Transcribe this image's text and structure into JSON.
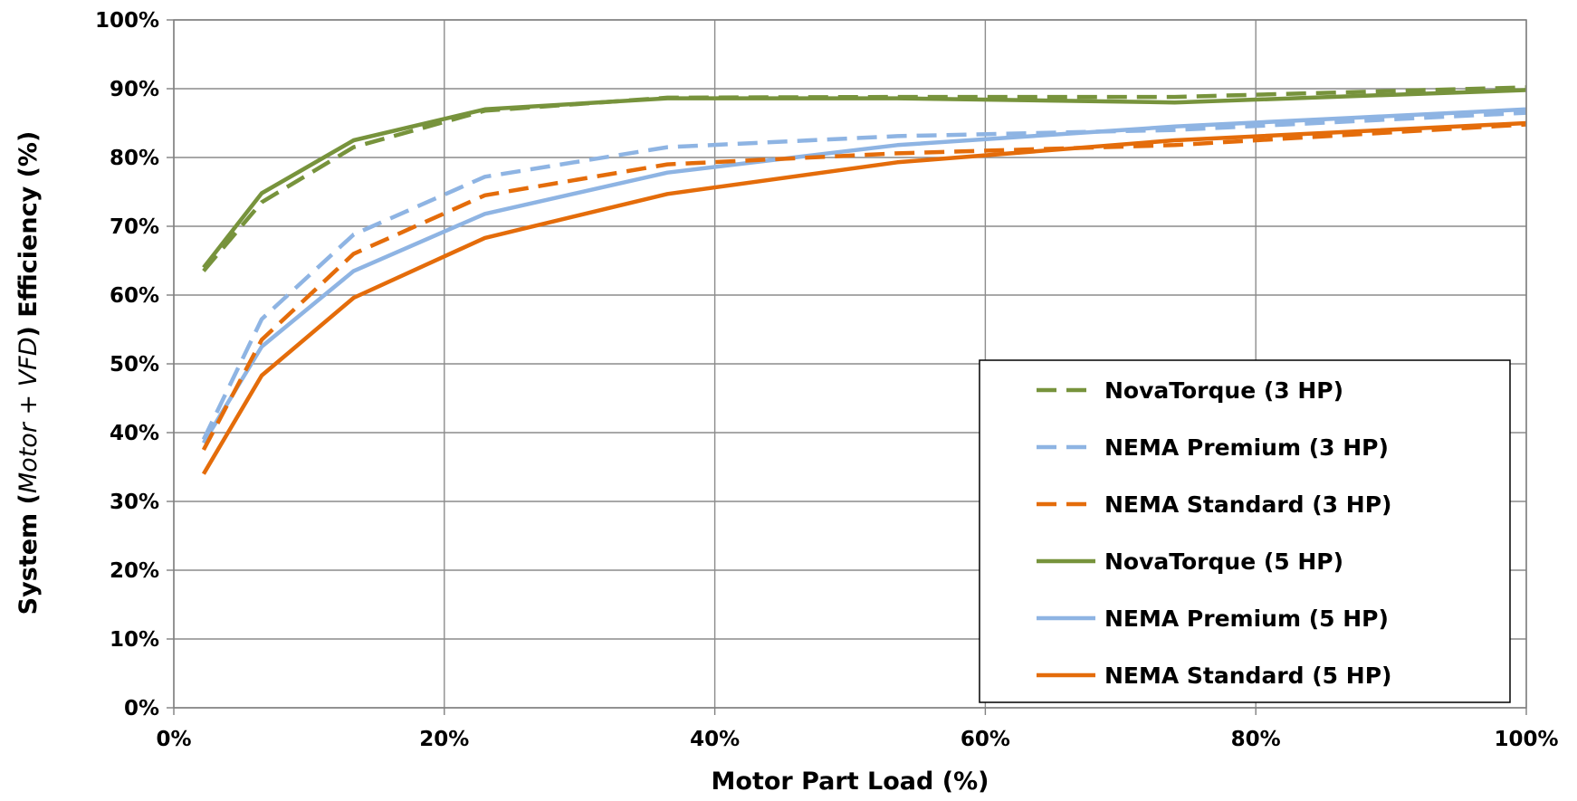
{
  "chart_data": {
    "type": "line",
    "xlabel": "Motor Part Load (%)",
    "ylabel": {
      "prefix": "System (",
      "italic": "Motor + VFD",
      "suffix": ") Efficiency (%)"
    },
    "xlim": [
      0,
      100
    ],
    "ylim": [
      0,
      100
    ],
    "x_ticks": [
      "0%",
      "20%",
      "40%",
      "60%",
      "80%",
      "100%"
    ],
    "y_ticks": [
      "0%",
      "10%",
      "20%",
      "30%",
      "40%",
      "50%",
      "60%",
      "70%",
      "80%",
      "90%",
      "100%"
    ],
    "grid": true,
    "legend_position": "bottom-right",
    "series": [
      {
        "name": "NovaTorque (3 HP)",
        "color": "#77933C",
        "dash": "dashed",
        "x": [
          2.2,
          6.5,
          13.3,
          23,
          36.5,
          53.5,
          74,
          100
        ],
        "y": [
          63.5,
          73.5,
          81.5,
          86.8,
          88.7,
          88.8,
          88.8,
          90.2
        ]
      },
      {
        "name": "NEMA Premium (3 HP)",
        "color": "#8EB4E3",
        "dash": "dashed",
        "x": [
          2.2,
          6.5,
          13.3,
          23,
          36.5,
          53.5,
          74,
          100
        ],
        "y": [
          39,
          56.5,
          68.8,
          77.2,
          81.5,
          83.1,
          84,
          86.5
        ]
      },
      {
        "name": "NEMA Standard (3 HP)",
        "color": "#E46C0A",
        "dash": "dashed",
        "x": [
          2.2,
          6.5,
          13.3,
          23,
          36.5,
          53.5,
          74,
          100
        ],
        "y": [
          37.5,
          53.5,
          66,
          74.5,
          79,
          80.6,
          81.8,
          84.8
        ]
      },
      {
        "name": "NovaTorque (5 HP)",
        "color": "#77933C",
        "dash": "solid",
        "x": [
          2.2,
          6.5,
          13.3,
          23,
          36.5,
          53.5,
          74,
          100
        ],
        "y": [
          64,
          74.8,
          82.5,
          87,
          88.6,
          88.6,
          88,
          89.8
        ]
      },
      {
        "name": "NEMA Premium (5 HP)",
        "color": "#8EB4E3",
        "dash": "solid",
        "x": [
          2.2,
          6.5,
          13.3,
          23,
          36.5,
          53.5,
          74,
          100
        ],
        "y": [
          38.5,
          52.5,
          63.5,
          71.8,
          77.8,
          81.8,
          84.5,
          87
        ]
      },
      {
        "name": "NEMA Standard (5 HP)",
        "color": "#E46C0A",
        "dash": "solid",
        "x": [
          2.2,
          6.5,
          13.3,
          23,
          36.5,
          53.5,
          74,
          100
        ],
        "y": [
          34,
          48.3,
          59.6,
          68.3,
          74.7,
          79.3,
          82.5,
          85
        ]
      }
    ]
  }
}
